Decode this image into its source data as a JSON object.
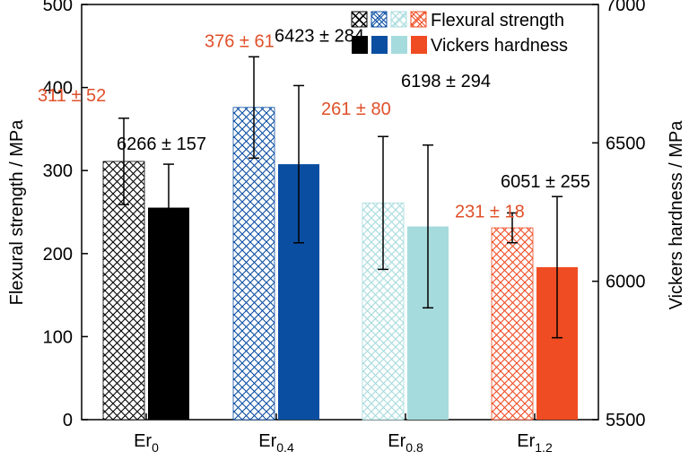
{
  "chart_data": {
    "type": "bar",
    "title": "",
    "categories": [
      {
        "base": "Er",
        "sub": "0"
      },
      {
        "base": "Er",
        "sub": "0.4"
      },
      {
        "base": "Er",
        "sub": "0.8"
      },
      {
        "base": "Er",
        "sub": "1.2"
      }
    ],
    "left_axis": {
      "label": "Flexural strength / MPa",
      "range": [
        0,
        500
      ],
      "ticks": [
        "0",
        "100",
        "200",
        "300",
        "400",
        "500"
      ]
    },
    "right_axis": {
      "label": "Vickers hardness / MPa",
      "range": [
        5500,
        7000
      ],
      "ticks": [
        "5500",
        "6000",
        "6500",
        "7000"
      ]
    },
    "series": [
      {
        "name": "Flexural strength",
        "axis": "left",
        "fill": "crosshatch",
        "values": [
          311,
          376,
          261,
          231
        ],
        "errors": [
          52,
          61,
          80,
          18
        ],
        "labels": [
          "311 ± 52",
          "376 ± 61",
          "261 ± 80",
          "231 ± 18"
        ],
        "label_color": "#e0502a"
      },
      {
        "name": "Vickers hardness",
        "axis": "right",
        "fill": "solid",
        "values": [
          6266,
          6423,
          6198,
          6051
        ],
        "errors": [
          157,
          284,
          294,
          255
        ],
        "labels": [
          "6266 ± 157",
          "6423 ± 284",
          "6198 ± 294",
          "6051 ± 255"
        ],
        "label_color": "#000000"
      }
    ],
    "category_colors": [
      "#000000",
      "#0a4ea2",
      "#a6dbdd",
      "#ef4c23"
    ],
    "legend_position": "top-right",
    "grid": false
  }
}
